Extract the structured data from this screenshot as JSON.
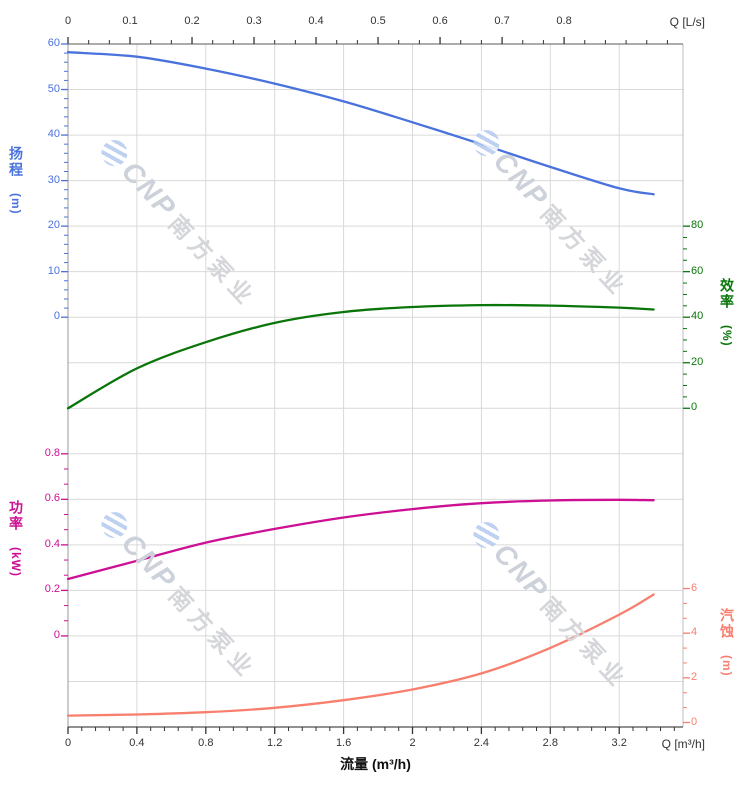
{
  "watermark": {
    "brand": "CNP",
    "company": "南方泵业"
  },
  "chart_data": {
    "type": "line",
    "title": "",
    "grid": true,
    "legend": "none",
    "x_axis_bottom": {
      "title": "Q [m³/h]",
      "axis_label": "流量 (m³/h)",
      "tick_labels": [
        "0",
        "0.4",
        "0.8",
        "1.2",
        "1.6",
        "2",
        "2.4",
        "2.8",
        "3.2"
      ],
      "tick_values": [
        0,
        0.4,
        0.8,
        1.2,
        1.6,
        2,
        2.4,
        2.8,
        3.2
      ],
      "minor_step": 0.08,
      "minor_max": 3.52,
      "range": [
        0,
        3.57
      ]
    },
    "x_axis_top": {
      "title": "Q [L/s]",
      "tick_labels": [
        "0",
        "0.1",
        "0.2",
        "0.3",
        "0.4",
        "0.5",
        "0.6",
        "0.7",
        "0.8"
      ],
      "tick_values": [
        0,
        0.1,
        0.2,
        0.3,
        0.4,
        0.5,
        0.6,
        0.7,
        0.8
      ],
      "minor_step": 0.033333,
      "minor_max": 0.967,
      "range": [
        0,
        0.992
      ]
    },
    "y_axes": {
      "head": {
        "label": "扬程",
        "unit": "(m)",
        "side": "left",
        "color": "#4a72dc",
        "tick_labels": [
          "0",
          "10",
          "20",
          "30",
          "40",
          "50",
          "60"
        ],
        "tick_values": [
          0,
          10,
          20,
          30,
          40,
          50,
          60
        ],
        "minor_step": 2,
        "range": [
          0,
          60
        ]
      },
      "efficiency": {
        "label": "效率",
        "unit": "(%)",
        "side": "right",
        "color": "#0a760a",
        "tick_labels": [
          "0",
          "20",
          "40",
          "60",
          "80"
        ],
        "tick_values": [
          0,
          20,
          40,
          60,
          80
        ],
        "minor_step": 5,
        "range": [
          0,
          80
        ]
      },
      "power": {
        "label": "功率",
        "unit": "(kW)",
        "side": "left",
        "color": "#cd0f93",
        "tick_labels": [
          "0",
          "0.2",
          "0.4",
          "0.6",
          "0.8"
        ],
        "tick_values": [
          0,
          0.2,
          0.4,
          0.6,
          0.8
        ],
        "minor_step": 0.066667,
        "range": [
          0,
          0.8
        ]
      },
      "npsh": {
        "label": "汽蚀",
        "unit": "(m)",
        "side": "right",
        "color": "#f87f6e",
        "tick_labels": [
          "0",
          "2",
          "4",
          "6"
        ],
        "tick_values": [
          0,
          2,
          4,
          6
        ],
        "minor_step": 0.66667,
        "range": [
          0,
          6
        ]
      }
    },
    "x": [
      0,
      0.4,
      0.8,
      1.2,
      1.6,
      2,
      2.4,
      2.8,
      3.2,
      3.4
    ],
    "series": [
      {
        "name": "扬程",
        "axis": "head",
        "unit": "m",
        "color": "#4a72dc",
        "values": [
          58.2,
          57.2,
          54.6,
          51.3,
          47.4,
          42.8,
          38.0,
          33.0,
          28.3,
          27.0
        ]
      },
      {
        "name": "效率",
        "axis": "efficiency",
        "unit": "%",
        "color": "#0a760a",
        "values": [
          0,
          17.5,
          29.0,
          37.5,
          42.3,
          44.5,
          45.3,
          45.1,
          44.2,
          43.4
        ]
      },
      {
        "name": "功率",
        "axis": "power",
        "unit": "kW",
        "color": "#cd0f93",
        "values": [
          0.25,
          0.33,
          0.41,
          0.47,
          0.52,
          0.557,
          0.583,
          0.595,
          0.598,
          0.596
        ]
      },
      {
        "name": "汽蚀",
        "axis": "npsh",
        "unit": "m",
        "color": "#f87f6e",
        "values": [
          0.31,
          0.36,
          0.46,
          0.66,
          1.0,
          1.48,
          2.2,
          3.34,
          4.83,
          5.73
        ]
      }
    ]
  }
}
